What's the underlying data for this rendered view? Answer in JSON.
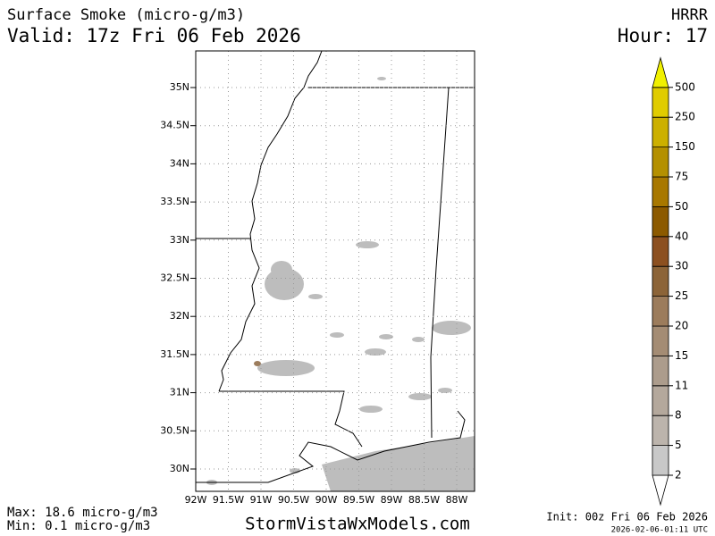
{
  "header": {
    "title": "Surface Smoke (micro-g/m3)",
    "valid": "Valid: 17z Fri 06 Feb 2026",
    "model": "HRRR",
    "hour": "Hour: 17"
  },
  "map": {
    "lat_ticks": [
      {
        "value": 35,
        "label": "35N"
      },
      {
        "value": 34.5,
        "label": "34.5N"
      },
      {
        "value": 34,
        "label": "34N"
      },
      {
        "value": 33.5,
        "label": "33.5N"
      },
      {
        "value": 33,
        "label": "33N"
      },
      {
        "value": 32.5,
        "label": "32.5N"
      },
      {
        "value": 32,
        "label": "32N"
      },
      {
        "value": 31.5,
        "label": "31.5N"
      },
      {
        "value": 31,
        "label": "31N"
      },
      {
        "value": 30.5,
        "label": "30.5N"
      },
      {
        "value": 30,
        "label": "30N"
      }
    ],
    "lon_ticks": [
      {
        "value": -92,
        "label": "92W"
      },
      {
        "value": -91.5,
        "label": "91.5W"
      },
      {
        "value": -91,
        "label": "91W"
      },
      {
        "value": -90.5,
        "label": "90.5W"
      },
      {
        "value": -90,
        "label": "90W"
      },
      {
        "value": -89.5,
        "label": "89.5W"
      },
      {
        "value": -89,
        "label": "89W"
      },
      {
        "value": -88.5,
        "label": "88.5W"
      },
      {
        "value": -88,
        "label": "88W"
      }
    ]
  },
  "colorbar": {
    "levels": [
      2,
      5,
      8,
      11,
      15,
      20,
      25,
      30,
      40,
      50,
      75,
      150,
      250,
      500
    ],
    "colors": [
      "#ffffff",
      "#c8c8c8",
      "#bcb4ac",
      "#b4a89c",
      "#ac9c8c",
      "#a48c74",
      "#9c7c5c",
      "#8c6438",
      "#8c5020",
      "#8c5a00",
      "#a87800",
      "#b49000",
      "#ccb000",
      "#e0cc00",
      "#f0f000"
    ]
  },
  "footer": {
    "max": "Max: 18.6 micro-g/m3",
    "min": "Min: 0.1 micro-g/m3",
    "site": "StormVistaWxModels.com",
    "init": "Init: 00z Fri 06 Feb 2026",
    "stamp": "2026-02-06-01:11 UTC"
  }
}
